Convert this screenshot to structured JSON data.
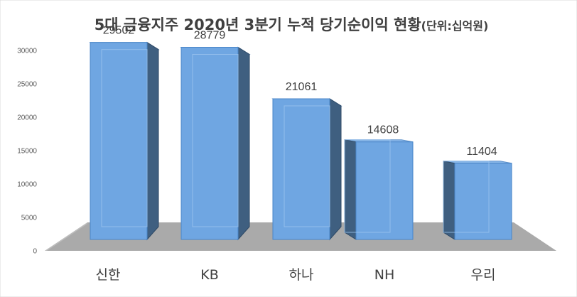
{
  "chart_data": {
    "type": "bar",
    "title": "5대 금융지주 2020년 3분기 누적 당기순이익 현황",
    "title_suffix": "(단위:십억원)",
    "categories": [
      "신한",
      "KB",
      "하나",
      "NH",
      "우리"
    ],
    "values": [
      29502,
      28779,
      21061,
      14608,
      11404
    ],
    "data_labels": [
      "29502",
      "28779",
      "21061",
      "14608",
      "11404"
    ],
    "yticks": [
      0,
      5000,
      10000,
      15000,
      20000,
      25000,
      30000
    ],
    "ylim": [
      0,
      30000
    ],
    "xlabel": "",
    "ylabel": "",
    "style": "3d-bar",
    "grid": false,
    "legend": "none",
    "colors": {
      "bar_front": "#6fa6e2",
      "bar_side": "#3f5f80",
      "bar_top": "#8ab8ea",
      "floor": "#a6a6a6"
    }
  }
}
